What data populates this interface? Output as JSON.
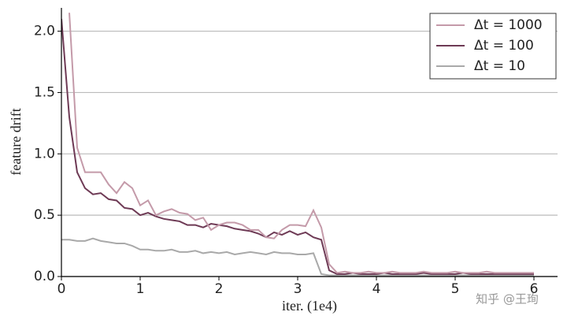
{
  "chart_data": {
    "type": "line",
    "xlabel": "iter. (1e4)",
    "ylabel": "feature drift",
    "x": [
      0,
      0.1,
      0.2,
      0.3,
      0.4,
      0.5,
      0.6,
      0.7,
      0.8,
      0.9,
      1,
      1.1,
      1.2,
      1.3,
      1.4,
      1.5,
      1.6,
      1.7,
      1.8,
      1.9,
      2,
      2.1,
      2.2,
      2.3,
      2.4,
      2.5,
      2.6,
      2.7,
      2.8,
      2.9,
      3,
      3.1,
      3.2,
      3.3,
      3.4,
      3.5,
      3.6,
      3.7,
      3.8,
      3.9,
      4,
      4.1,
      4.2,
      4.3,
      4.4,
      4.5,
      4.6,
      4.7,
      4.8,
      4.9,
      5,
      5.1,
      5.2,
      5.3,
      5.4,
      5.5,
      5.6,
      5.7,
      5.8,
      5.9,
      6
    ],
    "series": [
      {
        "name": "Δt = 1000",
        "color": "#c49aa9",
        "values": [
          null,
          2.15,
          1.05,
          0.85,
          0.85,
          0.85,
          0.75,
          0.68,
          0.77,
          0.72,
          0.58,
          0.62,
          0.5,
          0.53,
          0.55,
          0.52,
          0.51,
          0.46,
          0.48,
          0.38,
          0.42,
          0.44,
          0.44,
          0.42,
          0.38,
          0.38,
          0.32,
          0.31,
          0.38,
          0.42,
          0.42,
          0.41,
          0.54,
          0.4,
          0.1,
          0.03,
          0.04,
          0.03,
          0.03,
          0.04,
          0.03,
          0.03,
          0.04,
          0.03,
          0.03,
          0.03,
          0.04,
          0.03,
          0.03,
          0.03,
          0.04,
          0.03,
          0.03,
          0.03,
          0.04,
          0.03,
          0.03,
          0.03,
          0.03,
          0.03,
          0.03
        ]
      },
      {
        "name": "Δt = 100",
        "color": "#6e3a55",
        "values": [
          2.1,
          1.3,
          0.85,
          0.72,
          0.67,
          0.68,
          0.63,
          0.62,
          0.56,
          0.55,
          0.5,
          0.52,
          0.49,
          0.47,
          0.46,
          0.45,
          0.42,
          0.42,
          0.4,
          0.43,
          0.42,
          0.41,
          0.39,
          0.38,
          0.37,
          0.35,
          0.32,
          0.36,
          0.34,
          0.37,
          0.34,
          0.36,
          0.32,
          0.3,
          0.05,
          0.02,
          0.02,
          0.03,
          0.02,
          0.02,
          0.02,
          0.03,
          0.02,
          0.02,
          0.02,
          0.02,
          0.03,
          0.02,
          0.02,
          0.02,
          0.02,
          0.03,
          0.02,
          0.02,
          0.02,
          0.02,
          0.02,
          0.02,
          0.02,
          0.02,
          0.02
        ]
      },
      {
        "name": "Δt = 10",
        "color": "#a9a9a9",
        "values": [
          0.3,
          0.3,
          0.29,
          0.29,
          0.31,
          0.29,
          0.28,
          0.27,
          0.27,
          0.25,
          0.22,
          0.22,
          0.21,
          0.21,
          0.22,
          0.2,
          0.2,
          0.21,
          0.19,
          0.2,
          0.19,
          0.2,
          0.18,
          0.19,
          0.2,
          0.19,
          0.18,
          0.2,
          0.19,
          0.19,
          0.18,
          0.18,
          0.19,
          0.02,
          0.01,
          0.01,
          0.01,
          0.01,
          0.01,
          0.01,
          0.01,
          0.01,
          0.01,
          0.01,
          0.01,
          0.01,
          0.01,
          0.01,
          0.01,
          0.01,
          0.01,
          0.01,
          0.01,
          0.01,
          0.01,
          0.01,
          0.01,
          0.01,
          0.01,
          0.01,
          0.01
        ]
      }
    ],
    "xlim": [
      0,
      6.3
    ],
    "ylim": [
      0,
      2.19
    ],
    "xticks": [
      0,
      1,
      2,
      3,
      4,
      5,
      6
    ],
    "yticks": [
      {
        "value": 0,
        "label": "0.0"
      },
      {
        "value": 0.5,
        "label": "0.5"
      },
      {
        "value": 1,
        "label": "1.0"
      },
      {
        "value": 1.5,
        "label": "1.5"
      },
      {
        "value": 2,
        "label": "2.0"
      }
    ],
    "grid": true,
    "legend": "upper right",
    "watermark": "知乎 @王珣"
  }
}
